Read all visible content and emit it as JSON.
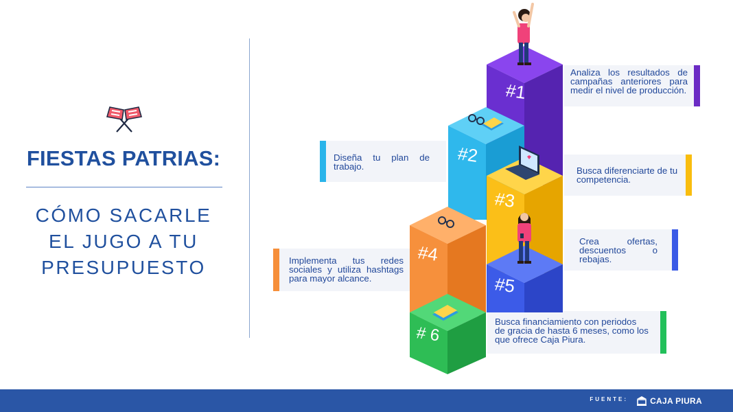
{
  "title": "FIESTAS PATRIAS:",
  "subtitle_lines": [
    "CÓMO SACARLE",
    "EL JUGO A TU",
    "PRESUPUESTO"
  ],
  "steps": [
    {
      "label": "#1",
      "text": "Analiza los resultados de campañas anteriores para medir el nivel de producción.",
      "color": "#6a2fd0",
      "bar": "#6b2bc4"
    },
    {
      "label": "#2",
      "text": "Diseña tu plan de trabajo.",
      "color": "#2fb8ec",
      "bar": "#2ab4ea"
    },
    {
      "label": "#3",
      "text": "Busca diferenciarte de tu competencia.",
      "color": "#fbbf18",
      "bar": "#f9bd0e"
    },
    {
      "label": "#4",
      "text": "Implementa tus redes sociales y utiliza hashtags para mayor alcance.",
      "color": "#f6903c",
      "bar": "#f68f3a"
    },
    {
      "label": "#5",
      "text": "Crea ofertas, descuentos o rebajas.",
      "color": "#3c5be8",
      "bar": "#3a5ae6"
    },
    {
      "label": "# 6",
      "text": "Busca financiamiento con periodos de gracia de hasta 6 meses, como los que ofrece Caja Piura.",
      "color": "#2ebd55",
      "bar": "#22c05a"
    }
  ],
  "footer": {
    "source_label": "FUENTE:",
    "brand": "CAJA PIURA",
    "color": "#2a56a6"
  },
  "icons": [
    "crossed-flags-icon",
    "bank-logo-icon",
    "laptop-icon",
    "glasses-icon",
    "book-icon",
    "person-icon"
  ]
}
